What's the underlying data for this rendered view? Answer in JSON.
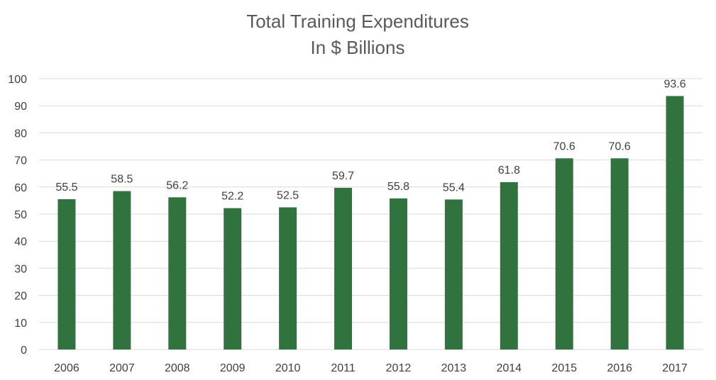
{
  "chart_data": {
    "type": "bar",
    "title": "Total Training Expenditures",
    "subtitle": "In $ Billions",
    "categories": [
      "2006",
      "2007",
      "2008",
      "2009",
      "2010",
      "2011",
      "2012",
      "2013",
      "2014",
      "2015",
      "2016",
      "2017"
    ],
    "values": [
      55.5,
      58.5,
      56.2,
      52.2,
      52.5,
      59.7,
      55.8,
      55.4,
      61.8,
      70.6,
      70.6,
      93.6
    ],
    "data_labels": [
      "55.5",
      "58.5",
      "56.2",
      "52.2",
      "52.5",
      "59.7",
      "55.8",
      "55.4",
      "61.8",
      "70.6",
      "70.6",
      "93.6"
    ],
    "ylim": [
      0,
      100
    ],
    "yticks": [
      "0",
      "10",
      "20",
      "30",
      "40",
      "50",
      "60",
      "70",
      "80",
      "90",
      "100"
    ],
    "grid": true,
    "legend": "none",
    "bar_color": "#31733f"
  }
}
